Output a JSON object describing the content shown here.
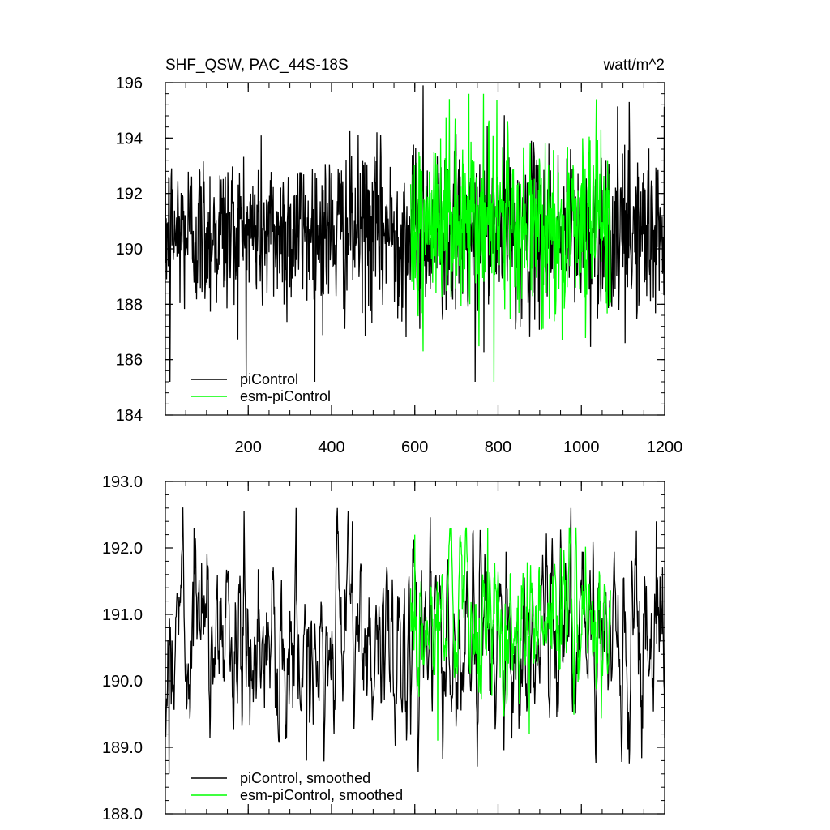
{
  "chart_data": [
    {
      "type": "line",
      "title": "SHF_QSW, PAC_44S-18S",
      "units": "watt/m^2",
      "xlim": [
        1,
        1200
      ],
      "ylim": [
        184,
        196
      ],
      "x_ticks": [
        200,
        400,
        600,
        800,
        1000,
        1200
      ],
      "y_ticks": [
        184,
        186,
        188,
        190,
        192,
        194,
        196
      ],
      "x_tick_labels": [
        "200",
        "400",
        "600",
        "800",
        "1000",
        "1200"
      ],
      "y_tick_labels": [
        "184",
        "186",
        "188",
        "190",
        "192",
        "194",
        "196"
      ],
      "legend_position": "bottom-left",
      "series": [
        {
          "name": "piControl",
          "color": "#000000",
          "x_range": [
            1,
            1200
          ],
          "mean": 190.6,
          "std": 1.5,
          "min": 185.2,
          "max": 195.9,
          "values_note": "monthly series, 1200 points",
          "peaks": [
            [
              12,
              185.2
            ],
            [
              620,
              195.9
            ],
            [
              745,
              185.2
            ],
            [
              1115,
              195.3
            ],
            [
              1105,
              186.6
            ]
          ]
        },
        {
          "name": "esm-piControl",
          "color": "#00ff00",
          "x_range": [
            590,
            1070
          ],
          "mean": 190.9,
          "std": 1.6,
          "min": 185.2,
          "max": 195.6,
          "peaks": [
            [
              620,
              186.3
            ],
            [
              730,
              195.6
            ],
            [
              790,
              185.2
            ],
            [
              765,
              195.6
            ]
          ]
        }
      ]
    },
    {
      "type": "line",
      "title": "",
      "xlim": [
        1,
        1200
      ],
      "ylim": [
        188.0,
        193.0
      ],
      "y_ticks": [
        188.0,
        189.0,
        190.0,
        191.0,
        192.0,
        193.0
      ],
      "y_tick_labels": [
        "188.0",
        "189.0",
        "190.0",
        "191.0",
        "192.0",
        "193.0"
      ],
      "x_ticks": [
        200,
        400,
        600,
        800,
        1000,
        1200
      ],
      "legend_position": "bottom-left",
      "series": [
        {
          "name": "piControl, smoothed",
          "color": "#000000",
          "x_range": [
            1,
            1200
          ],
          "mean": 190.6,
          "min": 188.6,
          "max": 192.6,
          "peaks": [
            [
              10,
              188.6
            ],
            [
              70,
              192.3
            ],
            [
              340,
              188.8
            ],
            [
              450,
              192.4
            ],
            [
              975,
              192.6
            ],
            [
              1180,
              192.4
            ]
          ]
        },
        {
          "name": "esm-piControl, smoothed",
          "color": "#00ff00",
          "x_range": [
            590,
            1070
          ],
          "mean": 190.9,
          "min": 189.1,
          "max": 192.3,
          "peaks": [
            [
              600,
              192.2
            ],
            [
              655,
              189.1
            ],
            [
              775,
              192.3
            ],
            [
              875,
              189.2
            ],
            [
              950,
              192.0
            ]
          ]
        }
      ]
    }
  ]
}
